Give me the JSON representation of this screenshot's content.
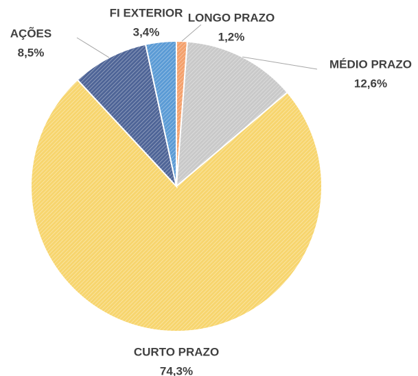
{
  "chart_data": {
    "type": "pie",
    "categories": [
      "LONGO PRAZO",
      "MÉDIO PRAZO",
      "CURTO PRAZO",
      "AÇÕES",
      "FI EXTERIOR"
    ],
    "values": [
      1.2,
      12.6,
      74.3,
      8.5,
      3.4
    ],
    "value_labels": [
      "1,2%",
      "12,6%",
      "74,3%",
      "8,5%",
      "3,4%"
    ],
    "colors": [
      "#f4a06b",
      "#c9c9c9",
      "#f7d56e",
      "#4f6597",
      "#5b9bd5"
    ]
  }
}
